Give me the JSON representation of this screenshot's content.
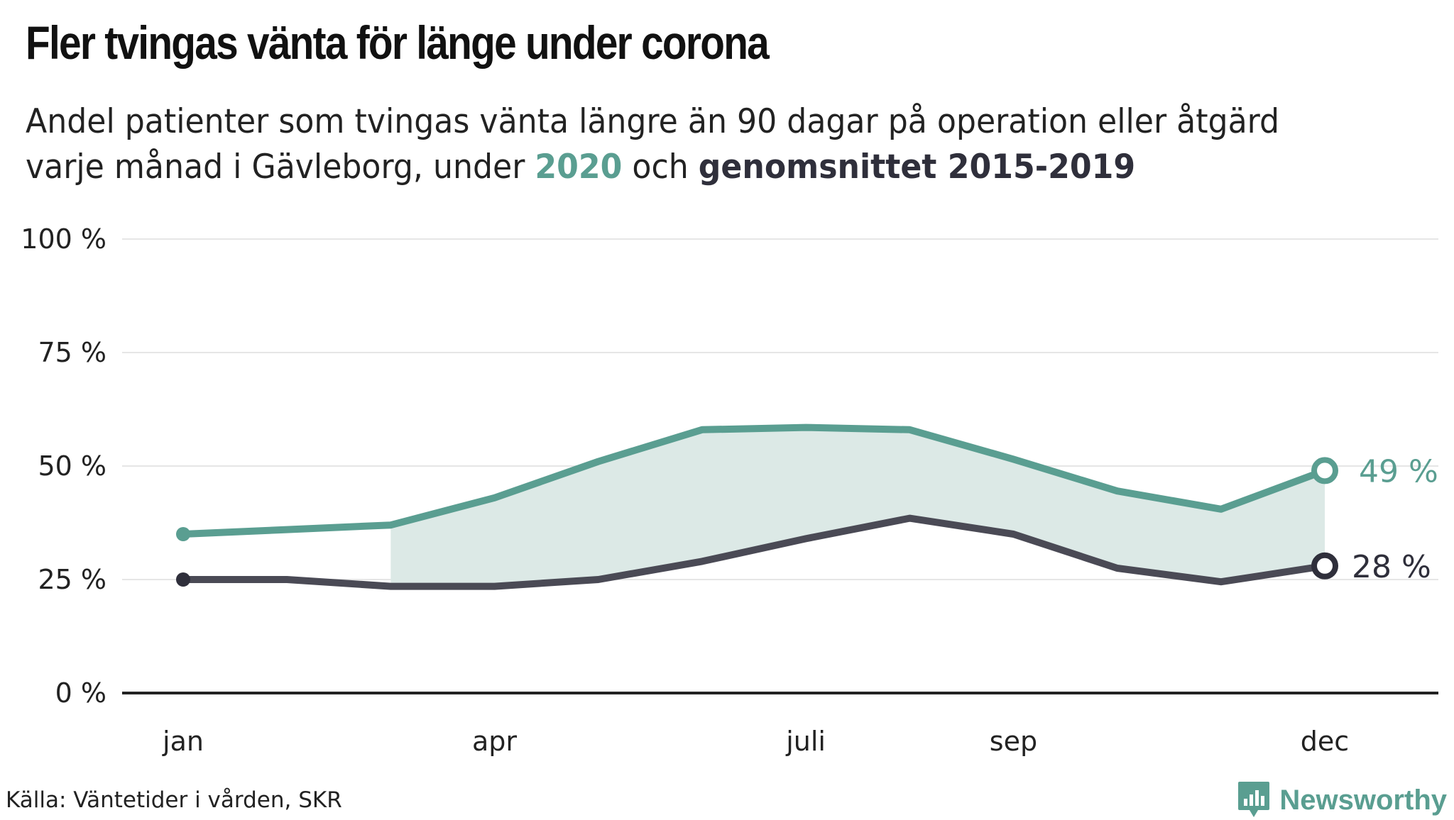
{
  "header": {
    "title": "Fler tvingas vänta för länge under corona",
    "subtitle_part1": "Andel patienter som tvingas vänta längre än 90 dagar på operation eller åtgärd varje månad i Gävleborg, under ",
    "subtitle_highlight_2020": "2020",
    "subtitle_part2": " och ",
    "subtitle_highlight_avg": "genomsnittet 2015-2019"
  },
  "footer": {
    "source": "Källa: Väntetider i vården, SKR",
    "brand": "Newsworthy"
  },
  "colors": {
    "series_2020": "#5a9e91",
    "series_avg": "#4a4a55",
    "fill": "#dce9e6",
    "axis": "#222222",
    "grid": "#e6e6e6"
  },
  "chart_data": {
    "type": "line",
    "title": "Fler tvingas vänta för länge under corona",
    "x": [
      1,
      2,
      3,
      4,
      5,
      6,
      7,
      8,
      9,
      10,
      11,
      12
    ],
    "x_tick_positions": [
      1,
      4,
      7,
      9,
      12
    ],
    "x_tick_labels": [
      "jan",
      "apr",
      "juli",
      "sep",
      "dec"
    ],
    "ylim": [
      0,
      100
    ],
    "y_ticks": [
      0,
      25,
      50,
      75,
      100
    ],
    "y_tick_labels": [
      "0 %",
      "25 %",
      "50 %",
      "75 %",
      "100 %"
    ],
    "grid": true,
    "series": [
      {
        "name": "2020",
        "values": [
          35,
          36,
          37,
          43,
          51,
          58,
          58.5,
          58,
          51.5,
          44.5,
          40.5,
          49
        ],
        "end_label": "49 %"
      },
      {
        "name": "genomsnittet 2015-2019",
        "values": [
          25,
          25,
          23.5,
          23.5,
          25,
          29,
          34,
          38.5,
          35,
          27.5,
          24.5,
          28
        ],
        "end_label": "28 %"
      }
    ],
    "shaded_between_from_x": 3
  }
}
